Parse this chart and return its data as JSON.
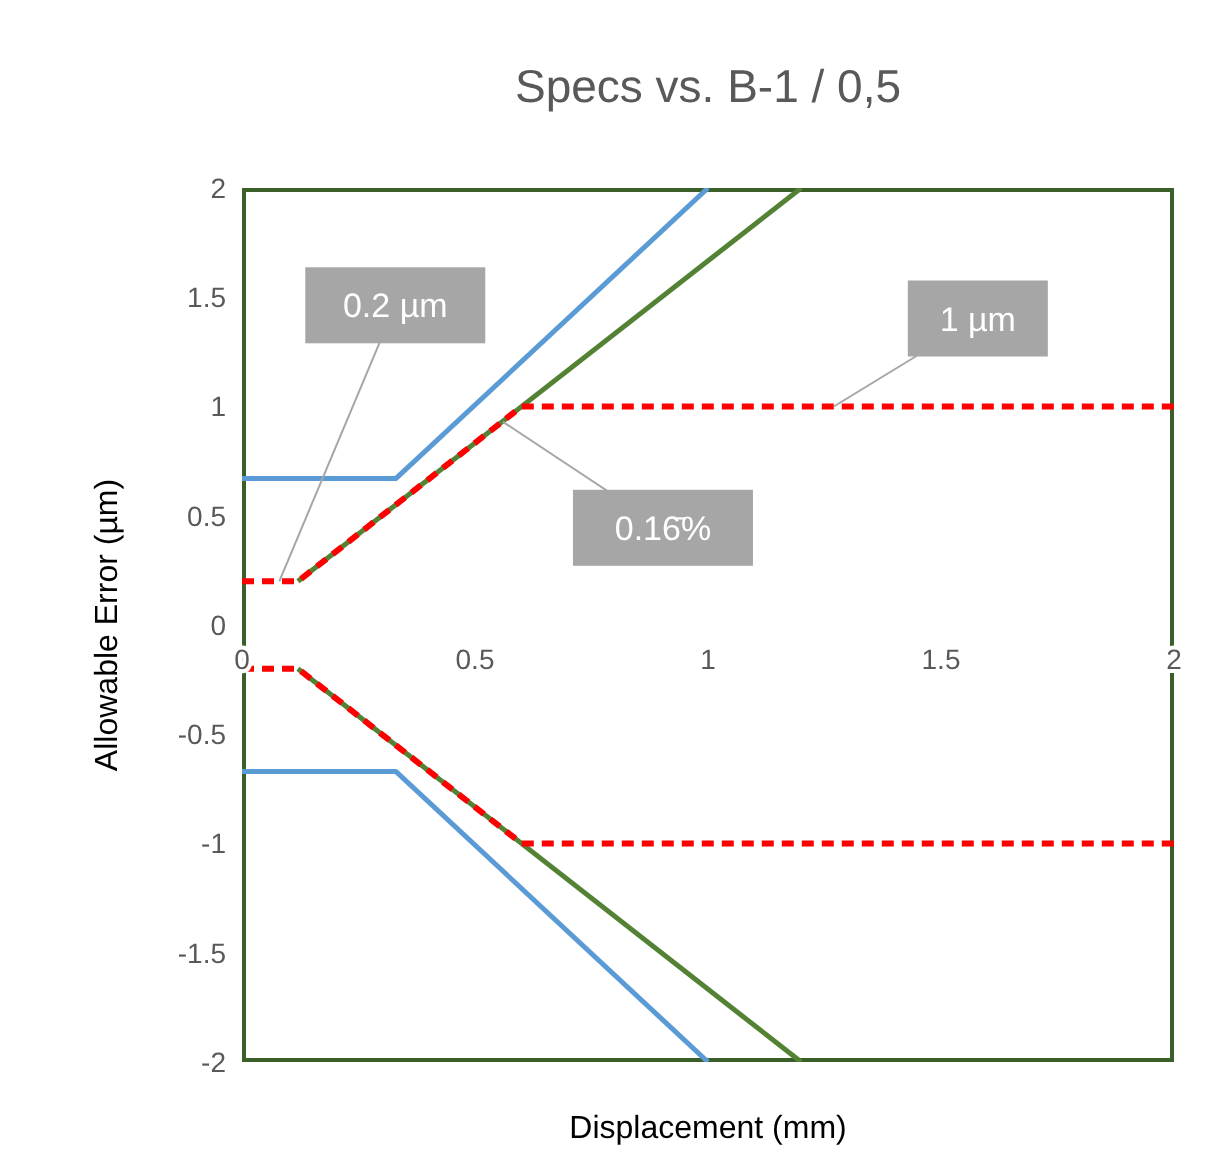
{
  "chart_data": {
    "type": "line",
    "title": "Specs vs. B-1 / 0,5",
    "xlabel": "Displacement (mm)",
    "ylabel": "Allowable Error (µm)",
    "series": [
      {
        "color": "#5b9bd5",
        "x": [
          0,
          0.33,
          1
        ],
        "values": [
          0.67,
          0.67,
          2
        ]
      },
      {
        "color": "#5b9bd5",
        "x": [
          0,
          0.33,
          1
        ],
        "values": [
          -0.67,
          -0.67,
          -2
        ]
      },
      {
        "color": "#548235",
        "x": [
          0.12,
          1.2
        ],
        "values": [
          0.2,
          2
        ]
      },
      {
        "color": "#548235",
        "x": [
          0.12,
          1.2
        ],
        "values": [
          -0.2,
          -2
        ]
      },
      {
        "color": "#ff0000",
        "line_style": "dashed",
        "x": [
          0,
          0.12,
          0.6,
          2
        ],
        "values": [
          0.2,
          0.2,
          1,
          1
        ]
      },
      {
        "color": "#ff0000",
        "line_style": "dashed",
        "x": [
          0,
          0.12,
          0.6,
          2
        ],
        "values": [
          -0.2,
          -0.2,
          -1,
          -1
        ]
      }
    ],
    "xlim": [
      0,
      2
    ],
    "xticks": [
      0,
      0.5,
      1,
      1.5,
      2
    ],
    "ylim": [
      -2,
      2
    ],
    "yticks": [
      -2,
      -1.5,
      -1,
      -0.5,
      0,
      0.5,
      1,
      1.5,
      2
    ],
    "grid": false,
    "marker": "none",
    "line_style": "solid",
    "annotations": [
      {
        "text": "0.2 µm",
        "x": 0.08,
        "y": 0.2
      },
      {
        "text": "1 µm",
        "x": 1.27,
        "y": 1
      },
      {
        "text": "0.16̄%",
        "x": 0.56,
        "y": 0.93
      }
    ]
  }
}
